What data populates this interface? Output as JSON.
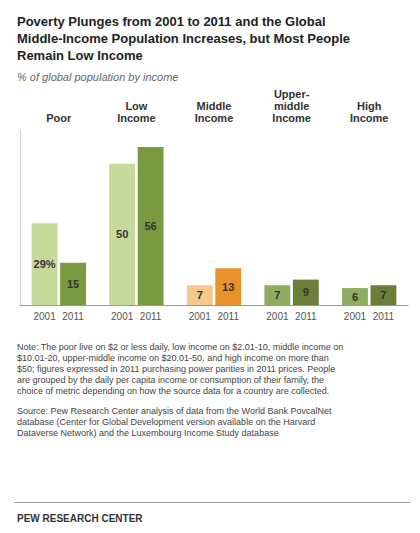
{
  "chart_data": {
    "type": "bar",
    "title": "Poverty Plunges from 2001 to 2011 and the Global\nMiddle-Income Population Increases, but Most People\nRemain Low Income",
    "subtitle": "% of global population by income",
    "categories": [
      "Poor",
      "Low\nIncome",
      "Middle\nIncome",
      "Upper-\nmiddle\nIncome",
      "High\nIncome"
    ],
    "series": [
      {
        "name": "2001",
        "colors": [
          "#c5d99b",
          "#c5d99b",
          "#f5c98a",
          "#8fad60",
          "#8fad60"
        ],
        "values": [
          29,
          50,
          7,
          7,
          6
        ],
        "value_labels": [
          "29%",
          "50",
          "7",
          "7",
          "6"
        ]
      },
      {
        "name": "2011",
        "colors": [
          "#7a9a40",
          "#7a9a40",
          "#e8922e",
          "#6b7f3a",
          "#6b7f3a"
        ],
        "values": [
          15,
          56,
          13,
          9,
          7
        ],
        "value_labels": [
          "15",
          "56",
          "13",
          "9",
          "7"
        ]
      }
    ],
    "ylim": [
      0,
      62
    ],
    "data_labels": true,
    "tick_labels": "x",
    "grid": false,
    "note": "Note: The poor live on $2 or less daily, low income on $2.01-10, middle income on\n$10.01-20, upper-middle income on $20.01-50, and high income on more than\n$50; figures expressed in 2011 purchasing power parities in 2011 prices. People\nare grouped by the daily per capita income or consumption of their family, the\nchoice of metric depending on how the source data for a country are collected.",
    "source": "Source: Pew Research Center analysis of data from the World Bank PovcalNet\ndatabase (Center for Global Development version available on the Harvard\nDataverse Network) and the Luxembourg Income Study database",
    "footer": "PEW RESEARCH CENTER"
  }
}
